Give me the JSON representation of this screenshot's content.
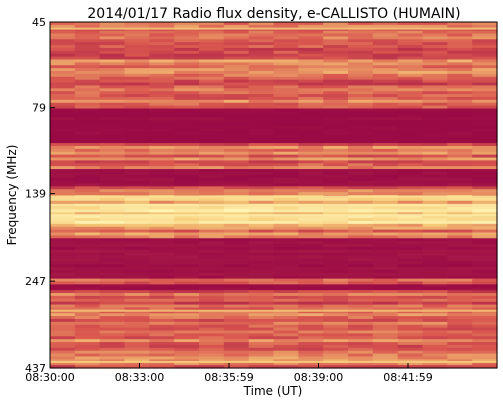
{
  "chart_data": {
    "type": "heatmap",
    "title": "2014/01/17  Radio flux density, e-CALLISTO (HUMAIN)",
    "xlabel": "Time (UT)",
    "ylabel": "Frequency (MHz)",
    "x_ticks": [
      "08:30:00",
      "08:33:00",
      "08:35:59",
      "08:39:00",
      "08:41:59"
    ],
    "y_ticks": [
      "45",
      "79",
      "139",
      "247",
      "437"
    ],
    "y_scale": "log",
    "ylim": [
      45,
      437
    ],
    "colormap": "red-to-yellow (maroon low, light yellow high)",
    "dominant_features": [
      {
        "description": "strong low-intensity band",
        "freq_range_mhz": [
          80,
          100
        ]
      },
      {
        "description": "low-intensity band",
        "freq_range_mhz": [
          118,
          132
        ]
      },
      {
        "description": "bright emission band",
        "freq_range_mhz": [
          140,
          175
        ]
      },
      {
        "description": "low-intensity band",
        "freq_range_mhz": [
          185,
          245
        ]
      }
    ]
  },
  "colors": {
    "background": "#ffffff",
    "low": "#9a0a45",
    "mid": "#d9564f",
    "high": "#f6cd78",
    "peak": "#fff6b8"
  }
}
